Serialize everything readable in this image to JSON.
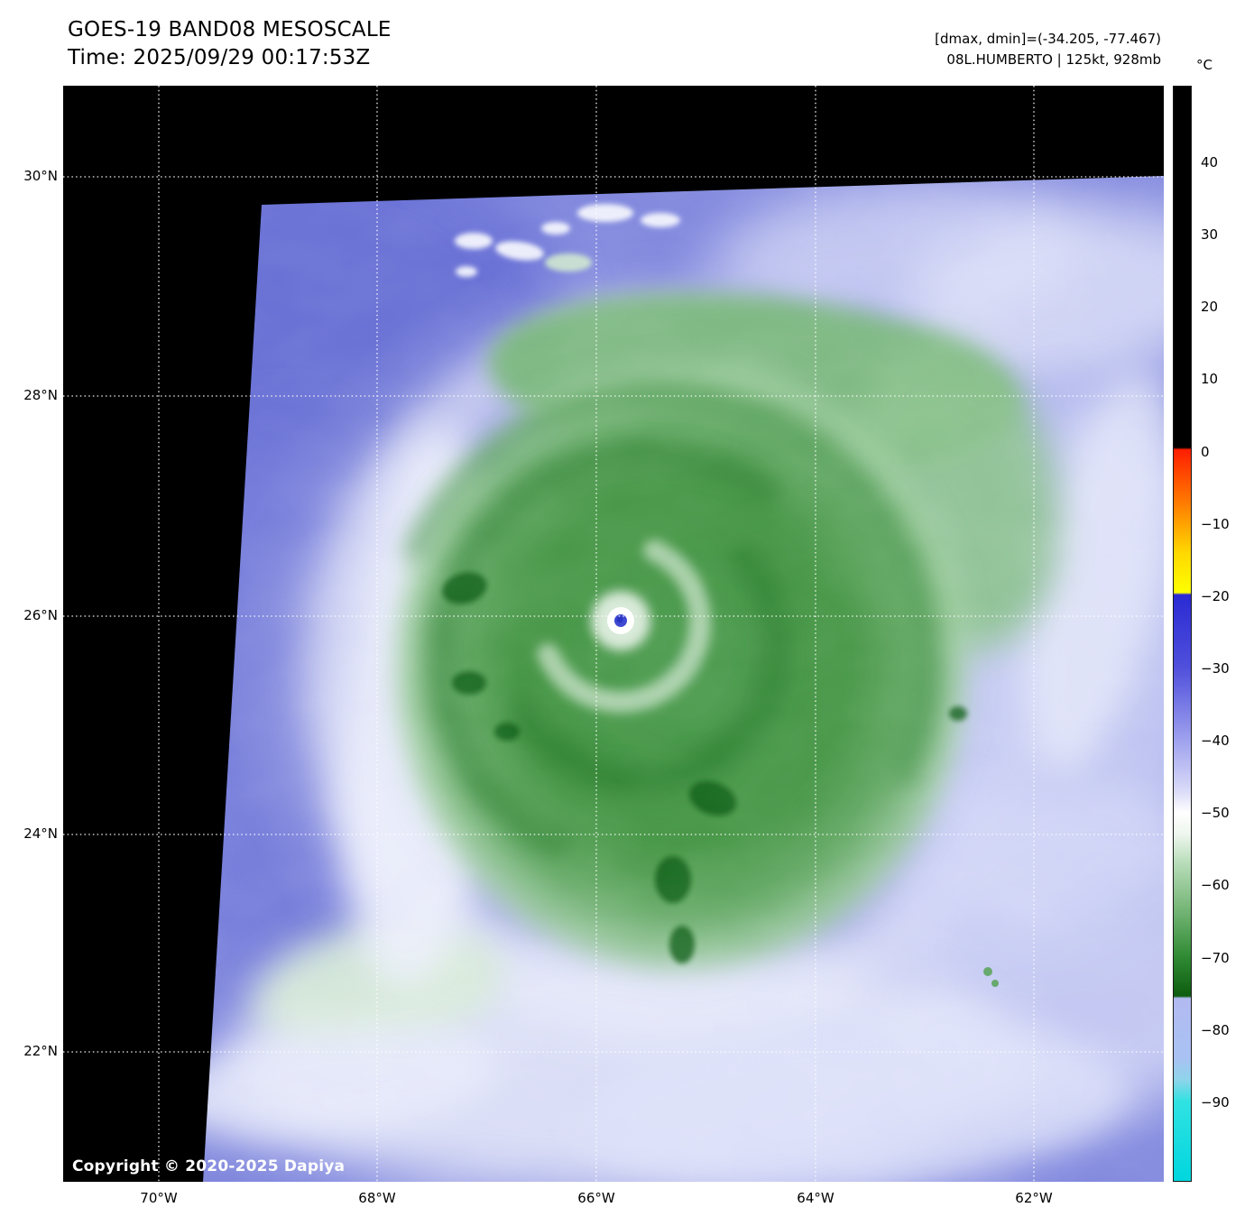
{
  "header": {
    "title": "GOES-19 BAND08 MESOSCALE",
    "time": "Time: 2025/09/29 00:17:53Z",
    "dmax_dmin": "[dmax, dmin]=(-34.205, -77.467)",
    "storm": "08L.HUMBERTO | 125kt, 928mb"
  },
  "colorbar": {
    "unit": "°C",
    "ticks": [
      "40",
      "30",
      "20",
      "10",
      "0",
      "−10",
      "−20",
      "−30",
      "−40",
      "−50",
      "−60",
      "−70",
      "−80",
      "−90"
    ]
  },
  "axes": {
    "lat": [
      "30°N",
      "28°N",
      "26°N",
      "24°N",
      "22°N"
    ],
    "lon": [
      "70°W",
      "68°W",
      "66°W",
      "64°W",
      "62°W"
    ]
  },
  "footer": {
    "copyright": "Copyright © 2020-2025 Dapiya"
  },
  "chart_data": {
    "type": "heatmap",
    "title": "GOES-19 BAND08 MESOSCALE",
    "time_utc": "2025/09/29 00:17:53Z",
    "satellite": "GOES-19",
    "band": "BAND08",
    "sector": "MESOSCALE",
    "storm": {
      "atcf_id": "08L",
      "name": "HUMBERTO",
      "intensity_kt": 125,
      "pressure_mb": 928
    },
    "dmax_c": -34.205,
    "dmin_c": -77.467,
    "colorbar": {
      "label": "°C",
      "tick_values": [
        40,
        30,
        20,
        10,
        0,
        -10,
        -20,
        -30,
        -40,
        -50,
        -60,
        -70,
        -80,
        -90
      ],
      "domain_top_c": 50.6,
      "domain_bottom_c": -101,
      "stops": [
        {
          "t": 50.6,
          "c": "#000000"
        },
        {
          "t": 0.6,
          "c": "#000000"
        },
        {
          "t": 0.3,
          "c": "#ff1e00"
        },
        {
          "t": -7,
          "c": "#ff7a00"
        },
        {
          "t": -14,
          "c": "#ffd800"
        },
        {
          "t": -19.5,
          "c": "#fdff00"
        },
        {
          "t": -19.8,
          "c": "#2a2ad4"
        },
        {
          "t": -30,
          "c": "#5050dc"
        },
        {
          "t": -40,
          "c": "#9fa2ee"
        },
        {
          "t": -47,
          "c": "#dadbf8"
        },
        {
          "t": -50,
          "c": "#ffffff"
        },
        {
          "t": -53,
          "c": "#eef6ee"
        },
        {
          "t": -57,
          "c": "#b7dcb8"
        },
        {
          "t": -64,
          "c": "#6fb271"
        },
        {
          "t": -70,
          "c": "#2f8a33"
        },
        {
          "t": -75.4,
          "c": "#0d5c10"
        },
        {
          "t": -75.7,
          "c": "#b2baf2"
        },
        {
          "t": -84,
          "c": "#a9c2f3"
        },
        {
          "t": -87,
          "c": "#8ed4ea"
        },
        {
          "t": -90,
          "c": "#30e2e2"
        },
        {
          "t": -101,
          "c": "#00d6de"
        }
      ]
    },
    "lat_gridlines_deg_n": [
      30,
      28,
      26,
      24,
      22
    ],
    "lon_gridlines_deg_w": [
      70,
      68,
      66,
      64,
      62
    ],
    "grid": true,
    "eye_location_approx": {
      "lat_n": 25.95,
      "lon_w": 65.8
    }
  }
}
